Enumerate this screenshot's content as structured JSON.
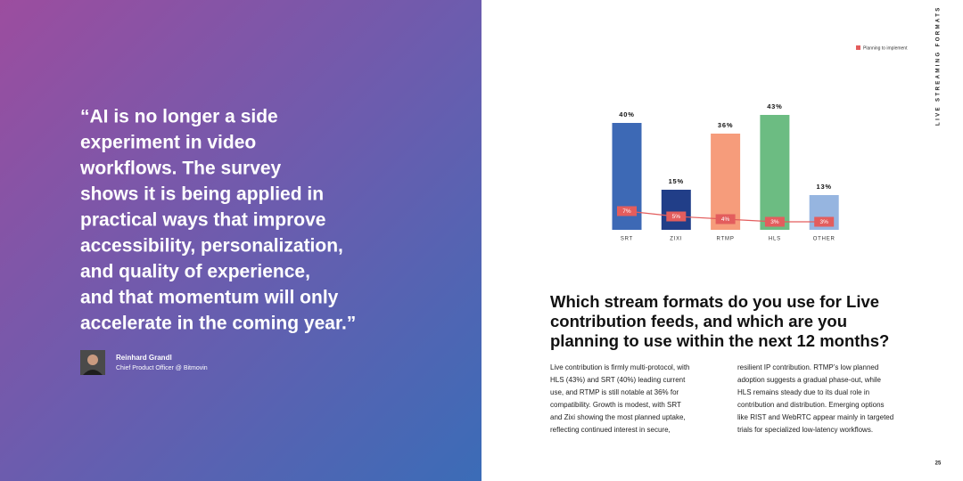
{
  "quote": {
    "lines": [
      "“AI is no longer a side",
      "experiment in video",
      "workflows. The survey",
      "shows it is being applied in",
      "practical ways that improve",
      "accessibility, personalization,",
      "and quality of experience,",
      "and that momentum will only",
      "accelerate in the coming year.”"
    ]
  },
  "author": {
    "name": "Reinhard Grandl",
    "role": "Chief Product Officer @ Bitmovin"
  },
  "section_label": "LIVE STREAMING FORMATS",
  "chart_data": {
    "type": "bar",
    "categories": [
      "SRT",
      "ZIXI",
      "RTMP",
      "HLS",
      "OTHER"
    ],
    "values": [
      40,
      15,
      36,
      43,
      13
    ],
    "value_labels": [
      "40%",
      "15%",
      "36%",
      "43%",
      "13%"
    ],
    "colors": [
      "#3d69b5",
      "#213e88",
      "#f69c7b",
      "#6cbc82",
      "#96b5e0"
    ],
    "ylim": [
      0,
      50
    ],
    "line": {
      "name": "Planning to implement",
      "color": "#e35d5d",
      "values": [
        7,
        5,
        4,
        3,
        3
      ],
      "value_labels": [
        "7%",
        "5%",
        "4%",
        "3%",
        "3%"
      ]
    }
  },
  "heading": {
    "lines": [
      "Which stream formats do you use for Live",
      "contribution feeds, and which are you",
      "planning to use within the next 12 months?"
    ]
  },
  "body": {
    "columns": [
      [
        "Live contribution is firmly multi-protocol, with",
        "HLS (43%) and SRT (40%) leading current",
        "use, and RTMP is still notable at 36% for",
        "compatibility. Growth is modest, with SRT",
        "and Zixi showing the most planned uptake,",
        "reflecting continued interest in secure,"
      ],
      [
        "resilient IP contribution. RTMP’s low planned",
        "adoption suggests a gradual phase-out, while",
        "HLS remains steady due to its dual role in",
        "contribution and distribution. Emerging options",
        "like RIST and WebRTC appear mainly in targeted",
        "trials for specialized low-latency workflows."
      ]
    ]
  },
  "page_number": "25"
}
